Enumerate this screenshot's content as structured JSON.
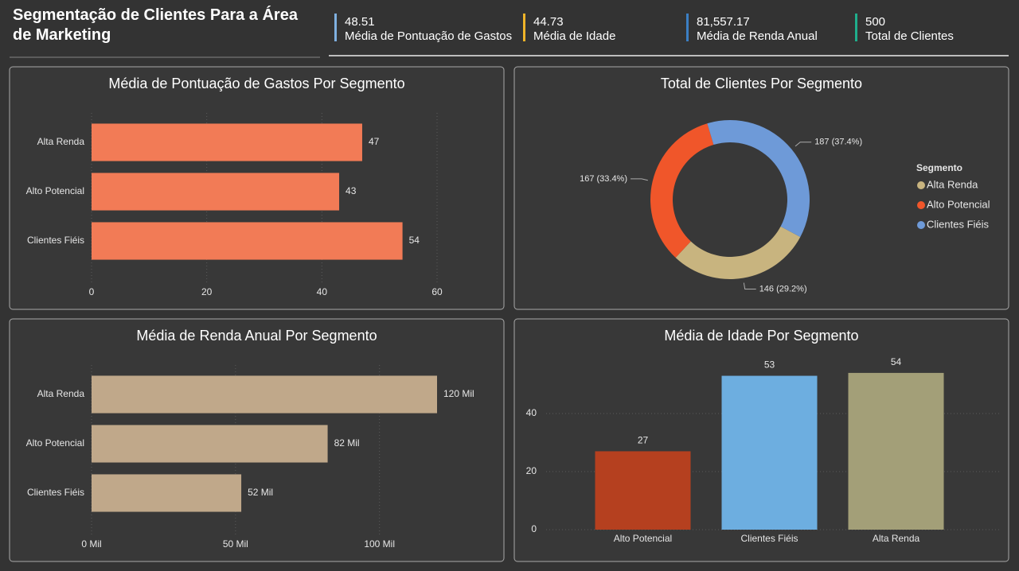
{
  "header": {
    "title": "Segmentação de Clientes Para a Área de Marketing",
    "kpis": [
      {
        "value": 48.51,
        "name": "Média de Pontuação de Gastos",
        "color": "#7fb0e0"
      },
      {
        "value": 44.73,
        "name": "Média de Idade",
        "color": "#f0b429"
      },
      {
        "value": 81557.17,
        "value_label": "81,557.17",
        "name": "Média de Renda Anual",
        "color": "#3b7fc4"
      },
      {
        "value": 500,
        "name": "Total de Clientes",
        "color": "#1fae8c"
      }
    ]
  },
  "chart_data": [
    {
      "type": "bar",
      "orientation": "horizontal",
      "title": "Média de Pontuação de Gastos Por Segmento",
      "categories": [
        "Alta Renda",
        "Alto Potencial",
        "Clientes Fiéis"
      ],
      "values": [
        47,
        43,
        54
      ],
      "color": "#f27b56",
      "xlim": [
        0,
        60
      ],
      "xticks": [
        0,
        20,
        40,
        60
      ],
      "grid": true
    },
    {
      "type": "donut",
      "title": "Total de Clientes Por Segmento",
      "categories": [
        "Alta Renda",
        "Alto Potencial",
        "Clientes Fiéis"
      ],
      "values": [
        146,
        167,
        187
      ],
      "value_labels": [
        "146 (29.2%)",
        "167 (33.4%)",
        "187 (37.4%)"
      ],
      "colors": [
        "#c8b47f",
        "#f0562a",
        "#6e9ad8"
      ],
      "legend_title": "Segmento",
      "legend": "right"
    },
    {
      "type": "bar",
      "orientation": "horizontal",
      "title": "Média de Renda Anual Por Segmento",
      "categories": [
        "Alta Renda",
        "Alto Potencial",
        "Clientes Fiéis"
      ],
      "values": [
        120000,
        82000,
        52000
      ],
      "value_labels": [
        "120 Mil",
        "82 Mil",
        "52 Mil"
      ],
      "color": "#c0a88a",
      "xlim": [
        0,
        120000
      ],
      "xticks": [
        {
          "value": 0,
          "label": "0 Mil"
        },
        {
          "value": 50000,
          "label": "50 Mil"
        },
        {
          "value": 100000,
          "label": "100 Mil"
        }
      ],
      "grid": true
    },
    {
      "type": "bar",
      "orientation": "vertical",
      "title": "Média de Idade Por Segmento",
      "categories": [
        "Alto Potencial",
        "Clientes Fiéis",
        "Alta Renda"
      ],
      "values": [
        27,
        53,
        54
      ],
      "colors": [
        "#b5401f",
        "#6daee0",
        "#a39f78"
      ],
      "ylim": [
        0,
        60
      ],
      "yticks": [
        0,
        20,
        40
      ],
      "grid": true
    }
  ]
}
